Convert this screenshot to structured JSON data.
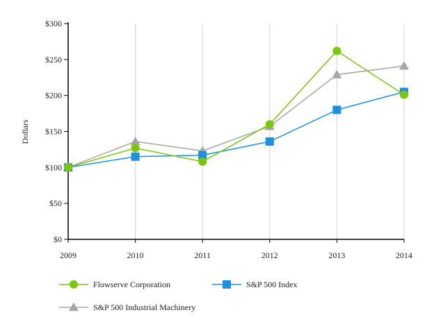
{
  "chart_data": {
    "type": "line",
    "title": "",
    "xlabel": "",
    "ylabel": "Dollars",
    "x": [
      "2009",
      "2010",
      "2011",
      "2012",
      "2013",
      "2014"
    ],
    "ylim": [
      0,
      300
    ],
    "yticks": [
      0,
      50,
      100,
      150,
      200,
      250,
      300
    ],
    "ytick_labels": [
      "$0",
      "$50",
      "$100",
      "$150",
      "$200",
      "$250",
      "$300"
    ],
    "grid": "vertical",
    "legend_position": "bottom",
    "series": [
      {
        "name": "Flowserve Corporation",
        "values": [
          100,
          127,
          108,
          160,
          262,
          201
        ],
        "color": "#7ac70c",
        "marker": "circle"
      },
      {
        "name": "S&P 500 Index",
        "values": [
          100,
          115,
          117,
          136,
          180,
          205
        ],
        "color": "#1e90e0",
        "marker": "square"
      },
      {
        "name": "S&P 500 Industrial Machinery",
        "values": [
          100,
          136,
          123,
          157,
          229,
          241
        ],
        "color": "#a6a6a6",
        "marker": "triangle"
      }
    ]
  }
}
